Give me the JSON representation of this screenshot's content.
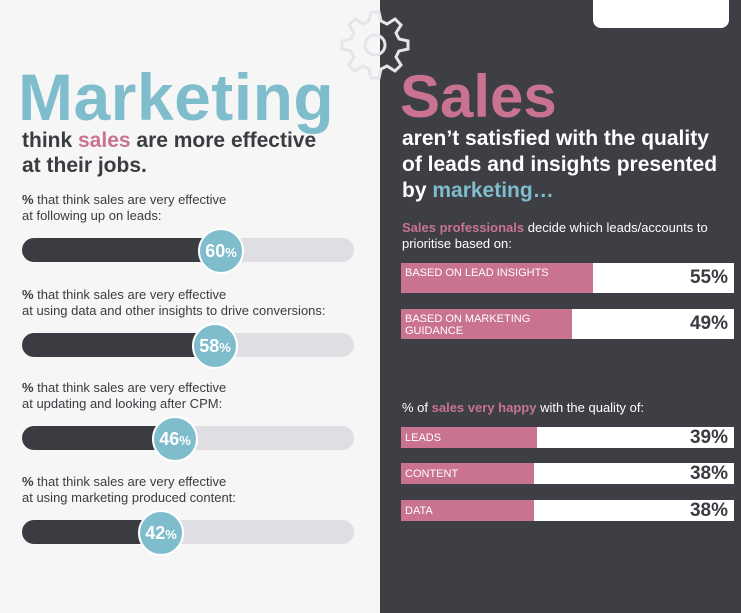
{
  "colors": {
    "teal": "#7fbdcd",
    "pink": "#c97391",
    "dark": "#3d3f44",
    "text_dark": "#3a3c41",
    "track": "#dedee3"
  },
  "icons": {
    "gear": "gear-icon"
  },
  "left_panel": {
    "title": "Marketing",
    "subtitle_pre": "think ",
    "subtitle_highlight": "sales",
    "subtitle_post": " are more effective at their jobs."
  },
  "right_panel": {
    "title": "Sales",
    "subtitle_pre": "aren’t satisfied with the quality of leads and insights presented by ",
    "subtitle_highlight": "marketing…",
    "intro_highlight": "Sales professionals",
    "intro_rest": " decide which leads/accounts to prioritise based on:",
    "happy_pre": "% of ",
    "happy_highlight1": "sales",
    "happy_mid": " ",
    "happy_highlight2": "very happy",
    "happy_post": " with the quality of:"
  },
  "chart_data": [
    {
      "type": "bar",
      "orientation": "horizontal",
      "categories": [
        "% that think sales are very effective at following up on leads:",
        "% that think sales are very effective at using data and other insights to drive conversions:",
        "% that think sales are very effective at updating and looking after CPM:",
        "% that think sales are very effective at using marketing produced content:"
      ],
      "label_prefix": "%",
      "label_lines": [
        [
          " that think sales are very effective",
          "at following up on leads:"
        ],
        [
          " that think sales are very effective",
          "at using data and other insights to drive conversions:"
        ],
        [
          " that think sales are very effective",
          "at updating and looking after CPM:"
        ],
        [
          " that think sales are very effective",
          "at using marketing produced content:"
        ]
      ],
      "values": [
        60,
        58,
        46,
        42
      ],
      "value_labels": [
        "60",
        "58",
        "46",
        "42"
      ],
      "unit": "%",
      "ylim": [
        0,
        100
      ]
    },
    {
      "type": "bar",
      "orientation": "horizontal",
      "categories": [
        "BASED ON LEAD INSIGHTS",
        "BASED ON MARKETING GUIDANCE"
      ],
      "values": [
        55,
        49
      ],
      "value_labels": [
        "55%",
        "49%"
      ],
      "ylim": [
        0,
        100
      ]
    },
    {
      "type": "bar",
      "orientation": "horizontal",
      "categories": [
        "LEADS",
        "CONTENT",
        "DATA"
      ],
      "values": [
        39,
        38,
        38
      ],
      "value_labels": [
        "39%",
        "38%",
        "38%"
      ],
      "ylim": [
        0,
        100
      ]
    }
  ]
}
